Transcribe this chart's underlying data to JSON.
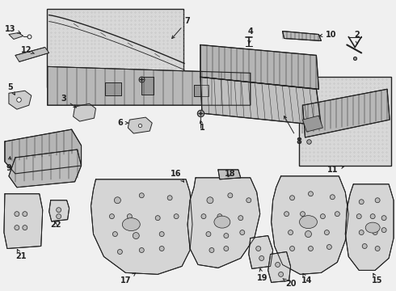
{
  "bg": "#f0f0f0",
  "lc": "#222222",
  "white": "#ffffff",
  "gray_light": "#e8e8e8",
  "gray_mid": "#cccccc",
  "fig_w": 4.9,
  "fig_h": 3.6,
  "dpi": 100,
  "label_fs": 7.0,
  "arrow_lw": 0.7,
  "part_lw": 0.7,
  "hatch_fc": "#d4d4d4",
  "box_bg": "#dcdcdc"
}
